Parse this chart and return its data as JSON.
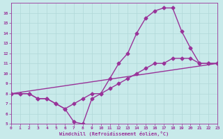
{
  "xlabel": "Windchill (Refroidissement éolien,°C)",
  "background_color": "#c8eaea",
  "grid_color": "#b0d8d8",
  "line_color": "#993399",
  "xlim": [
    0,
    23
  ],
  "ylim": [
    5,
    17
  ],
  "xticks": [
    0,
    1,
    2,
    3,
    4,
    5,
    6,
    7,
    8,
    9,
    10,
    11,
    12,
    13,
    14,
    15,
    16,
    17,
    18,
    19,
    20,
    21,
    22,
    23
  ],
  "yticks": [
    5,
    6,
    7,
    8,
    9,
    10,
    11,
    12,
    13,
    14,
    15,
    16
  ],
  "line1_x": [
    0,
    1,
    2,
    3,
    4,
    5,
    6,
    7,
    8,
    9,
    10,
    11,
    12,
    13,
    14,
    15,
    16,
    17,
    18,
    19,
    20,
    21,
    22,
    23
  ],
  "line1_y": [
    8,
    8,
    8,
    7.5,
    7.5,
    7,
    6.5,
    5.2,
    5.0,
    7.5,
    8.0,
    9.5,
    11.0,
    12.0,
    14.0,
    15.5,
    16.2,
    16.5,
    16.5,
    14.2,
    12.5,
    11.0,
    11.0,
    11.0
  ],
  "line2_x": [
    0,
    1,
    2,
    3,
    4,
    5,
    6,
    7,
    8,
    9,
    10,
    11,
    12,
    13,
    14,
    15,
    16,
    17,
    18,
    19,
    20,
    21,
    22,
    23
  ],
  "line2_y": [
    8,
    8,
    8,
    7.5,
    7.5,
    7.0,
    6.5,
    7.0,
    7.5,
    8.0,
    8.0,
    8.5,
    9.0,
    9.5,
    10.0,
    10.5,
    11.0,
    11.0,
    11.5,
    11.5,
    11.5,
    11.0,
    11.0,
    11.0
  ],
  "line3_x": [
    0,
    23
  ],
  "line3_y": [
    8,
    11
  ],
  "marker": "D",
  "markersize": 2.5,
  "linewidth": 1.0
}
